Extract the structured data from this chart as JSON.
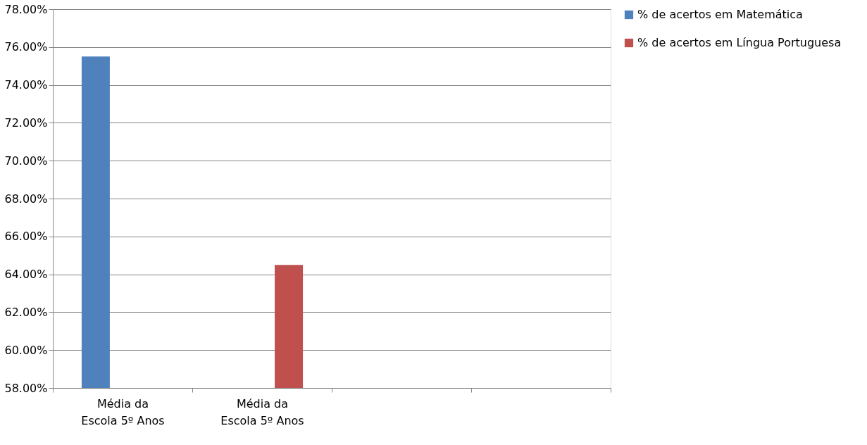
{
  "chart_data": {
    "type": "bar",
    "categories": [
      "Média da Escola  5º Anos",
      "Média da Escola  5º Anos",
      null,
      null
    ],
    "series": [
      {
        "name": "% de acertos em Matemática",
        "color": "#4f81bd",
        "values": [
          75.5,
          null,
          null,
          null
        ]
      },
      {
        "name": "% de acertos em Língua Portuguesa",
        "color": "#c0504d",
        "values": [
          null,
          64.5,
          null,
          null
        ]
      }
    ],
    "ylim": [
      58,
      78
    ],
    "yticks": [
      {
        "value": 58,
        "label": "58.00%"
      },
      {
        "value": 60,
        "label": "60.00%"
      },
      {
        "value": 62,
        "label": "62.00%"
      },
      {
        "value": 64,
        "label": "64.00%"
      },
      {
        "value": 66,
        "label": "66.00%"
      },
      {
        "value": 68,
        "label": "68.00%"
      },
      {
        "value": 70,
        "label": "70.00%"
      },
      {
        "value": 72,
        "label": "72.00%"
      },
      {
        "value": 74,
        "label": "74.00%"
      },
      {
        "value": 76,
        "label": "76.00%"
      },
      {
        "value": 78,
        "label": "78.00%"
      }
    ],
    "grid": "y",
    "legend": "right"
  }
}
